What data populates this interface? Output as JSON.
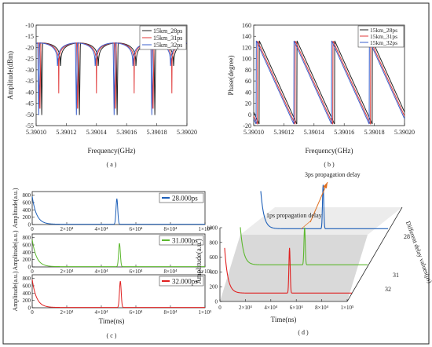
{
  "chart_data": [
    {
      "type": "line",
      "panel_label": "( a )",
      "ylabel": "Amplitude(dBm)",
      "xlabel": "Frequency(GHz)",
      "xlim": [
        5.3901,
        5.3902
      ],
      "ylim": [
        -55,
        -10
      ],
      "xticks": [
        "5.39010",
        "5.39012",
        "5.39014",
        "5.39016",
        "5.39018",
        "5.39020"
      ],
      "yticks": [
        "-10",
        "-15",
        "-20",
        "-25",
        "-30",
        "-35",
        "-40",
        "-45",
        "-50",
        "-55"
      ],
      "period": 2.5e-05,
      "peak_db": -18,
      "null_db": -51,
      "series": [
        {
          "name": "15km_28ps",
          "color": "#222222",
          "x_offset": 1.2e-06
        },
        {
          "name": "15km_31ps",
          "color": "#e03a3a",
          "x_offset": 0.0
        },
        {
          "name": "15km_32ps",
          "color": "#3a5fcc",
          "x_offset": -8e-07
        }
      ],
      "legend": "top-right"
    },
    {
      "type": "line",
      "panel_label": "( b )",
      "ylabel": "Phase(degree)",
      "xlabel": "Frequency(GHz)",
      "xlim": [
        5.3901,
        5.3902
      ],
      "ylim": [
        -20,
        160
      ],
      "xticks": [
        "5.39010",
        "5.39012",
        "5.39014",
        "5.39016",
        "5.39018",
        "5.39020"
      ],
      "yticks": [
        "160",
        "140",
        "120",
        "100",
        "80",
        "60",
        "40",
        "20",
        "0",
        "-20"
      ],
      "period": 2.5e-05,
      "phase_max": 132,
      "phase_min": -18,
      "series": [
        {
          "name": "15km_28ps",
          "color": "#222222",
          "x_offset": 1.2e-06
        },
        {
          "name": "15km_31ps",
          "color": "#e03a3a",
          "x_offset": 0.0
        },
        {
          "name": "15km_32ps",
          "color": "#3a5fcc",
          "x_offset": -8e-07
        }
      ],
      "legend": "top-right"
    },
    {
      "type": "line",
      "panel_label": "( c )",
      "xlabel": "Time(ns)",
      "shared_ylabel": "Amplitude(a.u.)",
      "xlim": [
        0,
        100000
      ],
      "ylim": [
        0,
        900
      ],
      "xticks": [
        "0",
        "2×10⁴",
        "4×10⁴",
        "6×10⁴",
        "8×10⁴",
        "1×10⁵"
      ],
      "yticks": [
        "0",
        "200",
        "400",
        "600",
        "800"
      ],
      "subplots": [
        {
          "name": "28.000ps",
          "color": "#1d5fb8",
          "pulse_x": 49000,
          "pulse_peak": 700,
          "start_peak": 760
        },
        {
          "name": "31.000ps",
          "color": "#5cb82e",
          "pulse_x": 50500,
          "pulse_peak": 640,
          "start_peak": 740
        },
        {
          "name": "32.000ps",
          "color": "#e02020",
          "pulse_x": 51000,
          "pulse_peak": 720,
          "start_peak": 760
        }
      ]
    },
    {
      "type": "line",
      "panel_label": "( d )",
      "xlabel": "Time(ns)",
      "ylabel": "Amplitude(a.u.)",
      "zlabel": "Different delay values(ps)",
      "xlim": [
        0,
        100000
      ],
      "ylim": [
        0,
        1000
      ],
      "xticks": [
        "0",
        "2×10⁴",
        "4×10⁴",
        "6×10⁴",
        "8×10⁴",
        "1×10⁵"
      ],
      "yticks": [
        "0",
        "200",
        "400",
        "600",
        "800",
        "1000"
      ],
      "zticks": [
        "28",
        "31",
        "32"
      ],
      "annotations": [
        "3ps propagation delay",
        "1ps propagation delay"
      ],
      "series": [
        {
          "delay": 28,
          "color": "#1d5fb8",
          "pulse_x": 49000,
          "pulse_peak": 700,
          "start_peak": 600
        },
        {
          "delay": 31,
          "color": "#5cb82e",
          "pulse_x": 50500,
          "pulse_peak": 600,
          "start_peak": 600
        },
        {
          "delay": 32,
          "color": "#e02020",
          "pulse_x": 51000,
          "pulse_peak": 720,
          "start_peak": 720
        }
      ]
    }
  ]
}
